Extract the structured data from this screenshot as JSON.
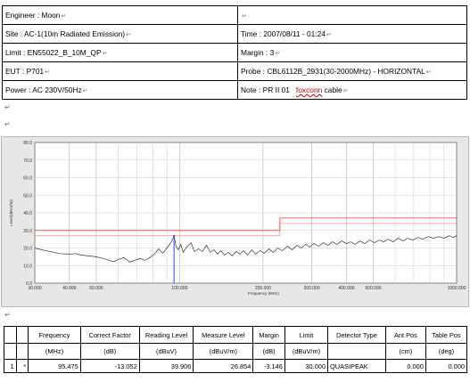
{
  "paragraph_mark": "↵",
  "return_mark": "↵",
  "info": {
    "engineer": "Engineer : Moon",
    "empty_cell": "",
    "site": "Site : AC-1(10m Radiated Emission)",
    "time": "Time : 2007/08/11 - 01:24",
    "limit": "Limit : EN55022_B_10M_QP",
    "margin": "Margin : 3",
    "eut": "EUT : P701",
    "probe": "Probe : CBL6112B_2931(30-2000MHz) - HORIZONTAL",
    "power": "Power : AC 230V/50Hz",
    "note_prefix": "Note : PR II 01",
    "note_misspelled": "foxconn",
    "note_suffix": " cable"
  },
  "chart_data": {
    "type": "line",
    "title": "",
    "xlabel": "Frequency (MHz)",
    "ylabel": "Level(dBuV/m)",
    "x_scale": "log",
    "xlim": [
      30,
      1000
    ],
    "ylim": [
      0,
      80
    ],
    "yticks": [
      "0.0",
      "10.0",
      "20.0",
      "30.0",
      "40.0",
      "50.0",
      "60.0",
      "70.0",
      "80.0"
    ],
    "xticks": [
      {
        "value": 30,
        "label": "30.000"
      },
      {
        "value": 40,
        "label": "40.000"
      },
      {
        "value": 50,
        "label": "50.000"
      },
      {
        "value": 100,
        "label": "100.000"
      },
      {
        "value": 200,
        "label": "200.000"
      },
      {
        "value": 300,
        "label": "300.000"
      },
      {
        "value": 400,
        "label": "400.000"
      },
      {
        "value": 500,
        "label": "500.000"
      },
      {
        "value": 1000,
        "label": "1000.000"
      }
    ],
    "grid": true,
    "colors": {
      "limit": "#ff3333",
      "margin": "#ff9999",
      "trace": "#333333",
      "marker": "#3355ff"
    },
    "limit_line": [
      [
        30,
        30
      ],
      [
        230,
        30
      ],
      [
        230,
        37
      ],
      [
        1000,
        37
      ]
    ],
    "margin_line": [
      [
        30,
        27
      ],
      [
        230,
        27
      ],
      [
        230,
        34
      ],
      [
        1000,
        34
      ]
    ],
    "trace": [
      [
        30,
        20
      ],
      [
        31.5,
        19.2
      ],
      [
        33,
        18.4
      ],
      [
        35,
        17.6
      ],
      [
        37,
        16.8
      ],
      [
        40,
        16.5
      ],
      [
        42,
        16.8
      ],
      [
        44,
        16.0
      ],
      [
        47,
        15.5
      ],
      [
        50,
        15.0
      ],
      [
        53,
        14.0
      ],
      [
        56,
        12.8
      ],
      [
        58,
        12.2
      ],
      [
        60,
        13.5
      ],
      [
        63,
        14.5
      ],
      [
        66,
        12.0
      ],
      [
        69,
        13.0
      ],
      [
        72,
        14.0
      ],
      [
        75,
        13.0
      ],
      [
        78,
        14.5
      ],
      [
        81,
        16.5
      ],
      [
        84,
        19.5
      ],
      [
        87,
        17.0
      ],
      [
        90,
        20.0
      ],
      [
        93,
        23.0
      ],
      [
        95.475,
        26.854
      ],
      [
        97,
        21.0
      ],
      [
        99,
        19.0
      ],
      [
        101,
        22.0
      ],
      [
        103,
        17.5
      ],
      [
        106,
        20.5
      ],
      [
        110,
        23.0
      ],
      [
        113,
        18.0
      ],
      [
        117,
        19.5
      ],
      [
        121,
        18.0
      ],
      [
        125,
        21.5
      ],
      [
        129,
        17.5
      ],
      [
        133,
        19.0
      ],
      [
        137,
        16.5
      ],
      [
        141,
        18.5
      ],
      [
        145,
        16.0
      ],
      [
        150,
        17.5
      ],
      [
        155,
        15.5
      ],
      [
        160,
        18.0
      ],
      [
        165,
        16.5
      ],
      [
        170,
        18.5
      ],
      [
        176,
        16.0
      ],
      [
        182,
        19.0
      ],
      [
        188,
        16.5
      ],
      [
        195,
        18.5
      ],
      [
        202,
        17.0
      ],
      [
        210,
        19.5
      ],
      [
        218,
        17.5
      ],
      [
        226,
        20.0
      ],
      [
        235,
        18.5
      ],
      [
        245,
        21.0
      ],
      [
        255,
        19.0
      ],
      [
        265,
        21.5
      ],
      [
        275,
        20.0
      ],
      [
        285,
        22.0
      ],
      [
        295,
        20.5
      ],
      [
        305,
        22.5
      ],
      [
        318,
        21.0
      ],
      [
        330,
        23.0
      ],
      [
        343,
        21.5
      ],
      [
        356,
        23.5
      ],
      [
        370,
        22.0
      ],
      [
        385,
        24.0
      ],
      [
        400,
        22.5
      ],
      [
        415,
        23.5
      ],
      [
        430,
        22.0
      ],
      [
        447,
        24.0
      ],
      [
        465,
        22.5
      ],
      [
        485,
        24.5
      ],
      [
        505,
        23.0
      ],
      [
        525,
        24.5
      ],
      [
        545,
        23.5
      ],
      [
        565,
        25.0
      ],
      [
        590,
        23.5
      ],
      [
        615,
        25.5
      ],
      [
        640,
        24.0
      ],
      [
        665,
        25.5
      ],
      [
        695,
        24.5
      ],
      [
        725,
        26.0
      ],
      [
        755,
        25.0
      ],
      [
        790,
        26.5
      ],
      [
        825,
        25.5
      ],
      [
        860,
        26.5
      ],
      [
        900,
        25.5
      ],
      [
        940,
        27.0
      ],
      [
        975,
        26.0
      ],
      [
        1000,
        27.0
      ]
    ],
    "marker": {
      "x": 95.475,
      "y": 26.854
    }
  },
  "results": {
    "headers": [
      "",
      "",
      "Frequency",
      "Correct Factor",
      "Reading Level",
      "Measure Level",
      "Margin",
      "Limit",
      "Detector Type",
      "Ant Pos",
      "Table Pos"
    ],
    "units": [
      "",
      "",
      "(MHz)",
      "(dB)",
      "(dBuV)",
      "(dBuV/m)",
      "(dB)",
      "(dBuV/m)",
      "",
      "(cm)",
      "(deg)"
    ],
    "rows": [
      [
        "1",
        "*",
        "95.475",
        "-13.052",
        "39.906",
        "26.854",
        "-3.146",
        "30.000",
        "QUASIPEAK",
        "0.000",
        "0.000"
      ]
    ]
  }
}
